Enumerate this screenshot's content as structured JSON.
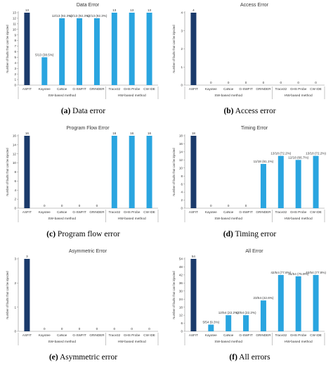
{
  "colors": {
    "asfit": "#1a3a6b",
    "others": "#2aa5e0",
    "axis": "#8c8c8c",
    "text": "#333333"
  },
  "chart_data": [
    {
      "type": "bar",
      "title": "Data Error",
      "caption_letter": "(a)",
      "caption_text": "Data error",
      "ylabel": "Number of faults that can be injected",
      "categories": [
        "ASFIT",
        "Kayotee",
        "CaNoe",
        "G-SWFIT",
        "GRINDER",
        "Trace32",
        "GHS Probe",
        "CW IDE"
      ],
      "groups": [
        {
          "label": "SW-based method",
          "count": 5
        },
        {
          "label": "HW-based method",
          "count": 3
        }
      ],
      "values": [
        13,
        5,
        12,
        12,
        12,
        13,
        13,
        13
      ],
      "data_labels": [
        "13",
        "5/13 (38.5%)",
        "12/13 (92.3%)",
        "12/13 (92.3%)",
        "12/13 (92.3%)",
        "13",
        "13",
        "13"
      ],
      "label_offsets": [
        0,
        0,
        0,
        0,
        0,
        0,
        0,
        0
      ],
      "yticks": [
        "0",
        "1",
        "2",
        "3",
        "4",
        "5",
        "6",
        "7",
        "8",
        "9",
        "10",
        "11",
        "12",
        "13"
      ],
      "ylim": [
        0,
        13
      ]
    },
    {
      "type": "bar",
      "title": "Access Error",
      "caption_letter": "(b)",
      "caption_text": "Access error",
      "ylabel": "Number of faults that can be injected",
      "categories": [
        "ASFIT",
        "Kayotee",
        "CaNoe",
        "G-SWFIT",
        "GRINDER",
        "Trace32",
        "GHS Probe",
        "CW IDE"
      ],
      "groups": [
        {
          "label": "SW-based method",
          "count": 5
        },
        {
          "label": "HW-based method",
          "count": 3
        }
      ],
      "values": [
        4,
        0,
        0,
        0,
        0,
        0,
        0,
        0
      ],
      "data_labels": [
        "4",
        "0",
        "0",
        "0",
        "0",
        "0",
        "0",
        "0"
      ],
      "label_offsets": [
        0,
        0,
        0,
        0,
        0,
        0,
        0,
        0
      ],
      "yticks": [
        "0",
        "1",
        "2",
        "3",
        "4"
      ],
      "ylim": [
        0,
        4
      ]
    },
    {
      "type": "bar",
      "title": "Program Flow Error",
      "caption_letter": "(c)",
      "caption_text": "Program flow error",
      "ylabel": "Number of faults that can be injected",
      "categories": [
        "ASFIT",
        "Kayotee",
        "CaNoe",
        "G-SWFIT",
        "GRINDER",
        "Trace32",
        "GHS Probe",
        "CW IDE"
      ],
      "groups": [
        {
          "label": "SW-based method",
          "count": 5
        },
        {
          "label": "HW-based method",
          "count": 3
        }
      ],
      "values": [
        16,
        0,
        0,
        0,
        0,
        16,
        16,
        16
      ],
      "data_labels": [
        "16",
        "0",
        "0",
        "0",
        "0",
        "16",
        "16",
        "16"
      ],
      "label_offsets": [
        0,
        0,
        0,
        0,
        0,
        0,
        0,
        0
      ],
      "yticks": [
        "0",
        "2",
        "4",
        "6",
        "8",
        "10",
        "12",
        "14",
        "16"
      ],
      "ylim": [
        0,
        16
      ]
    },
    {
      "type": "bar",
      "title": "Timing Error",
      "caption_letter": "(d)",
      "caption_text": "Timing error",
      "ylabel": "Number of faults that can be injected",
      "categories": [
        "ASFIT",
        "Kayotee",
        "CaNoe",
        "G-SWFIT",
        "GRINDER",
        "Trace32",
        "GHS Probe",
        "CW IDE"
      ],
      "groups": [
        {
          "label": "SW-based method",
          "count": 5
        },
        {
          "label": "HW-based method",
          "count": 3
        }
      ],
      "values": [
        18,
        0,
        0,
        0,
        11,
        13,
        12,
        13
      ],
      "data_labels": [
        "18",
        "0",
        "0",
        "0",
        "11/18 (61.1%)",
        "13/18 (72.2%)",
        "12/18 (66.7%)",
        "13/18 (72.2%)"
      ],
      "label_offsets": [
        0,
        0,
        0,
        0,
        0,
        0,
        0,
        0
      ],
      "yticks": [
        "0",
        "2",
        "4",
        "6",
        "8",
        "10",
        "12",
        "14",
        "16",
        "18"
      ],
      "ylim": [
        0,
        18
      ]
    },
    {
      "type": "bar",
      "title": "Asymmetric Error",
      "caption_letter": "(e)",
      "caption_text": "Asymmetric error",
      "ylabel": "Number of faults that can be injected",
      "categories": [
        "ASFIT",
        "Kayotee",
        "CaNoe",
        "G-SWFIT",
        "GRINDER",
        "Trace32",
        "GHS Probe",
        "CW IDE"
      ],
      "groups": [
        {
          "label": "SW-based method",
          "count": 5
        },
        {
          "label": "HW-based method",
          "count": 3
        }
      ],
      "values": [
        3,
        0,
        0,
        0,
        0,
        0,
        0,
        0
      ],
      "data_labels": [
        "3",
        "0",
        "0",
        "0",
        "0",
        "0",
        "0",
        "0"
      ],
      "label_offsets": [
        0,
        0,
        0,
        0,
        0,
        0,
        0,
        0
      ],
      "yticks": [
        "0",
        "1",
        "2",
        "3"
      ],
      "ylim": [
        0,
        3
      ]
    },
    {
      "type": "bar",
      "title": "All Error",
      "caption_letter": "(f)",
      "caption_text": "All errors",
      "ylabel": "Number of faults that can be injected",
      "categories": [
        "ASFIT",
        "Kayotee",
        "CaNoe",
        "G-SWFIT",
        "GRINDER",
        "Trace32",
        "GHS Probe",
        "CW IDE"
      ],
      "groups": [
        {
          "label": "SW-based method",
          "count": 5
        },
        {
          "label": "HW-based method",
          "count": 3
        }
      ],
      "values": [
        54,
        5,
        12,
        12,
        23,
        42,
        41,
        42
      ],
      "data_labels": [
        "54",
        "5/54 (9.3%)",
        "12/54 (22.2%)",
        "12/54 (22.2%)",
        "23/54 (42.6%)",
        "42/54 (77.8%)",
        "41/54 (75.9%)",
        "42/54 (77.8%)"
      ],
      "label_offsets": [
        0,
        0,
        0,
        0,
        0,
        0,
        0,
        0
      ],
      "yticks": [
        "0",
        "6",
        "12",
        "18",
        "24",
        "30",
        "36",
        "42",
        "48",
        "54"
      ],
      "ylim": [
        0,
        54
      ]
    }
  ]
}
